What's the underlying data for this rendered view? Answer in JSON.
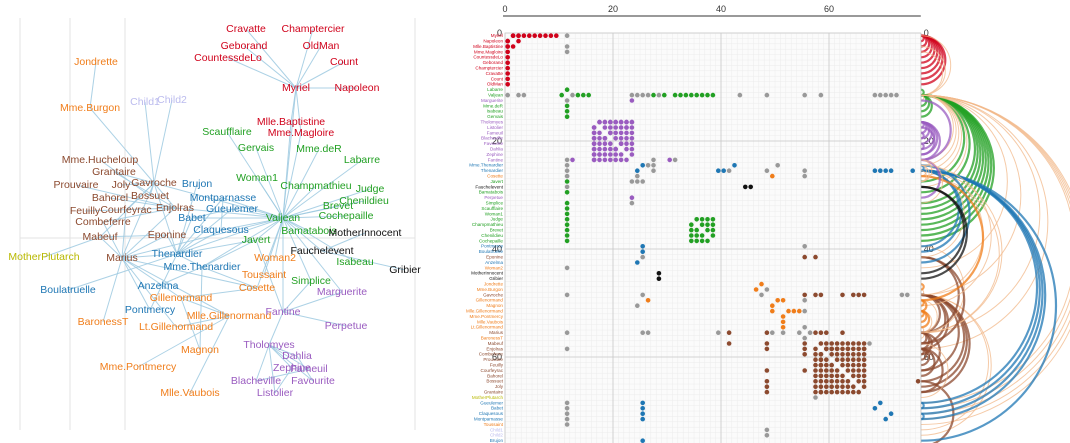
{
  "colors": {
    "red": "#d0021b",
    "orange": "#f07d1a",
    "green": "#22a023",
    "blue": "#1f77b4",
    "purple": "#9a5cc0",
    "brown": "#8c4a2f",
    "black": "#111111",
    "olive": "#b8b800",
    "lightblue": "#bbbbee",
    "edge": "#9ecae1"
  },
  "network": {
    "nodes": [
      {
        "label": "Cravatte",
        "g": "red"
      },
      {
        "label": "Champtercier",
        "g": "red"
      },
      {
        "label": "Geborand",
        "g": "red"
      },
      {
        "label": "OldMan",
        "g": "red"
      },
      {
        "label": "CountessdeLo",
        "g": "red"
      },
      {
        "label": "Count",
        "g": "red"
      },
      {
        "label": "Myriel",
        "g": "red"
      },
      {
        "label": "Napoleon",
        "g": "red"
      },
      {
        "label": "Jondrette",
        "g": "orange"
      },
      {
        "label": "Mme.Burgon",
        "g": "orange"
      },
      {
        "label": "Child1",
        "g": "lightblue"
      },
      {
        "label": "Child2",
        "g": "lightblue"
      },
      {
        "label": "Mlle.Baptistine",
        "g": "red"
      },
      {
        "label": "Mme.Magloire",
        "g": "red"
      },
      {
        "label": "Scaufflaire",
        "g": "green"
      },
      {
        "label": "Gervais",
        "g": "green"
      },
      {
        "label": "Mme.deR",
        "g": "green"
      },
      {
        "label": "Labarre",
        "g": "green"
      },
      {
        "label": "Mme.Hucheloup",
        "g": "brown"
      },
      {
        "label": "Grantaire",
        "g": "brown"
      },
      {
        "label": "Prouvaire",
        "g": "brown"
      },
      {
        "label": "Joly",
        "g": "brown"
      },
      {
        "label": "Gavroche",
        "g": "brown"
      },
      {
        "label": "Bahorel",
        "g": "brown"
      },
      {
        "label": "Bossuet",
        "g": "brown"
      },
      {
        "label": "Feuilly",
        "g": "brown"
      },
      {
        "label": "Courfeyrac",
        "g": "brown"
      },
      {
        "label": "Enjolras",
        "g": "brown"
      },
      {
        "label": "Combeferre",
        "g": "brown"
      },
      {
        "label": "Mabeuf",
        "g": "brown"
      },
      {
        "label": "Brujon",
        "g": "blue"
      },
      {
        "label": "Montparnasse",
        "g": "blue"
      },
      {
        "label": "Babet",
        "g": "blue"
      },
      {
        "label": "Gueulemer",
        "g": "blue"
      },
      {
        "label": "Claquesous",
        "g": "blue"
      },
      {
        "label": "Eponine",
        "g": "brown"
      },
      {
        "label": "Woman1",
        "g": "green"
      },
      {
        "label": "Champmathieu",
        "g": "green"
      },
      {
        "label": "Judge",
        "g": "green"
      },
      {
        "label": "Brevet",
        "g": "green"
      },
      {
        "label": "Chenildieu",
        "g": "green"
      },
      {
        "label": "Cochepaille",
        "g": "green"
      },
      {
        "label": "Valjean",
        "g": "green"
      },
      {
        "label": "Javert",
        "g": "green"
      },
      {
        "label": "Bamatabois",
        "g": "green"
      },
      {
        "label": "MotherInnocent",
        "g": "black"
      },
      {
        "label": "Fauchelevent",
        "g": "black"
      },
      {
        "label": "Isabeau",
        "g": "green"
      },
      {
        "label": "Gribier",
        "g": "black"
      },
      {
        "label": "MotherPlutarch",
        "g": "olive"
      },
      {
        "label": "Marius",
        "g": "brown"
      },
      {
        "label": "Thenardier",
        "g": "blue"
      },
      {
        "label": "Mme.Thenardier",
        "g": "blue"
      },
      {
        "label": "Woman2",
        "g": "orange"
      },
      {
        "label": "Toussaint",
        "g": "orange"
      },
      {
        "label": "Boulatruelle",
        "g": "blue"
      },
      {
        "label": "Anzelma",
        "g": "blue"
      },
      {
        "label": "Cosette",
        "g": "orange"
      },
      {
        "label": "Simplice",
        "g": "green"
      },
      {
        "label": "Marguerite",
        "g": "purple"
      },
      {
        "label": "Gillenormand",
        "g": "orange"
      },
      {
        "label": "Pontmercy",
        "g": "blue"
      },
      {
        "label": "Mlle.Gillenormand",
        "g": "orange"
      },
      {
        "label": "BaronessT",
        "g": "orange"
      },
      {
        "label": "Lt.Gillenormand",
        "g": "orange"
      },
      {
        "label": "Fantine",
        "g": "purple"
      },
      {
        "label": "Perpetue",
        "g": "purple"
      },
      {
        "label": "Magnon",
        "g": "orange"
      },
      {
        "label": "Tholomyes",
        "g": "purple"
      },
      {
        "label": "Dahlia",
        "g": "purple"
      },
      {
        "label": "Zephine",
        "g": "purple"
      },
      {
        "label": "Fameuil",
        "g": "purple"
      },
      {
        "label": "Mme.Pontmercy",
        "g": "orange"
      },
      {
        "label": "Blacheville",
        "g": "purple"
      },
      {
        "label": "Favourite",
        "g": "purple"
      },
      {
        "label": "Listolier",
        "g": "purple"
      },
      {
        "label": "Mlle.Vaubois",
        "g": "orange"
      }
    ]
  },
  "matrix": {
    "axis_ticks": [
      "0",
      "20",
      "40",
      "60"
    ],
    "row_labels": [
      "Myriel",
      "Napoleon",
      "Mlle.Baptistine",
      "Mme.Magloire",
      "CountessdeLo",
      "Geborand",
      "Champtercier",
      "Cravatte",
      "Count",
      "OldMan",
      "Labarre",
      "Valjean",
      "Marguerite",
      "Mme.deR",
      "Isabeau",
      "Gervais",
      "Tholomyes",
      "Listolier",
      "Fameuil",
      "Blacheville",
      "Favourite",
      "Dahlia",
      "Zephine",
      "Fantine",
      "Mme.Thenardier",
      "Thenardier",
      "Cosette",
      "Javert",
      "Fauchelevent",
      "Bamatabois",
      "Perpetue",
      "Simplice",
      "Scaufflaire",
      "Woman1",
      "Judge",
      "Champmathieu",
      "Brevet",
      "Chenildieu",
      "Cochepaille",
      "Pontmercy",
      "Boulatruelle",
      "Eponine",
      "Anzelma",
      "Woman2",
      "MotherInnocent",
      "Gribier",
      "Jondrette",
      "Mme.Burgon",
      "Gavroche",
      "Gillenormand",
      "Magnon",
      "Mlle.Gillenormand",
      "Mme.Pontmercy",
      "Mlle.Vaubois",
      "Lt.Gillenormand",
      "Marius",
      "BaronessT",
      "Mabeuf",
      "Enjolras",
      "Combeferre",
      "Prouvaire",
      "Feuilly",
      "Courfeyrac",
      "Bahorel",
      "Bossuet",
      "Joly",
      "Grantaire",
      "MotherPlutarch",
      "Gueulemer",
      "Babet",
      "Claquesous",
      "Montparnasse",
      "Toussaint",
      "Child1",
      "Child2",
      "Brujon",
      "Mme.Hucheloup"
    ]
  }
}
